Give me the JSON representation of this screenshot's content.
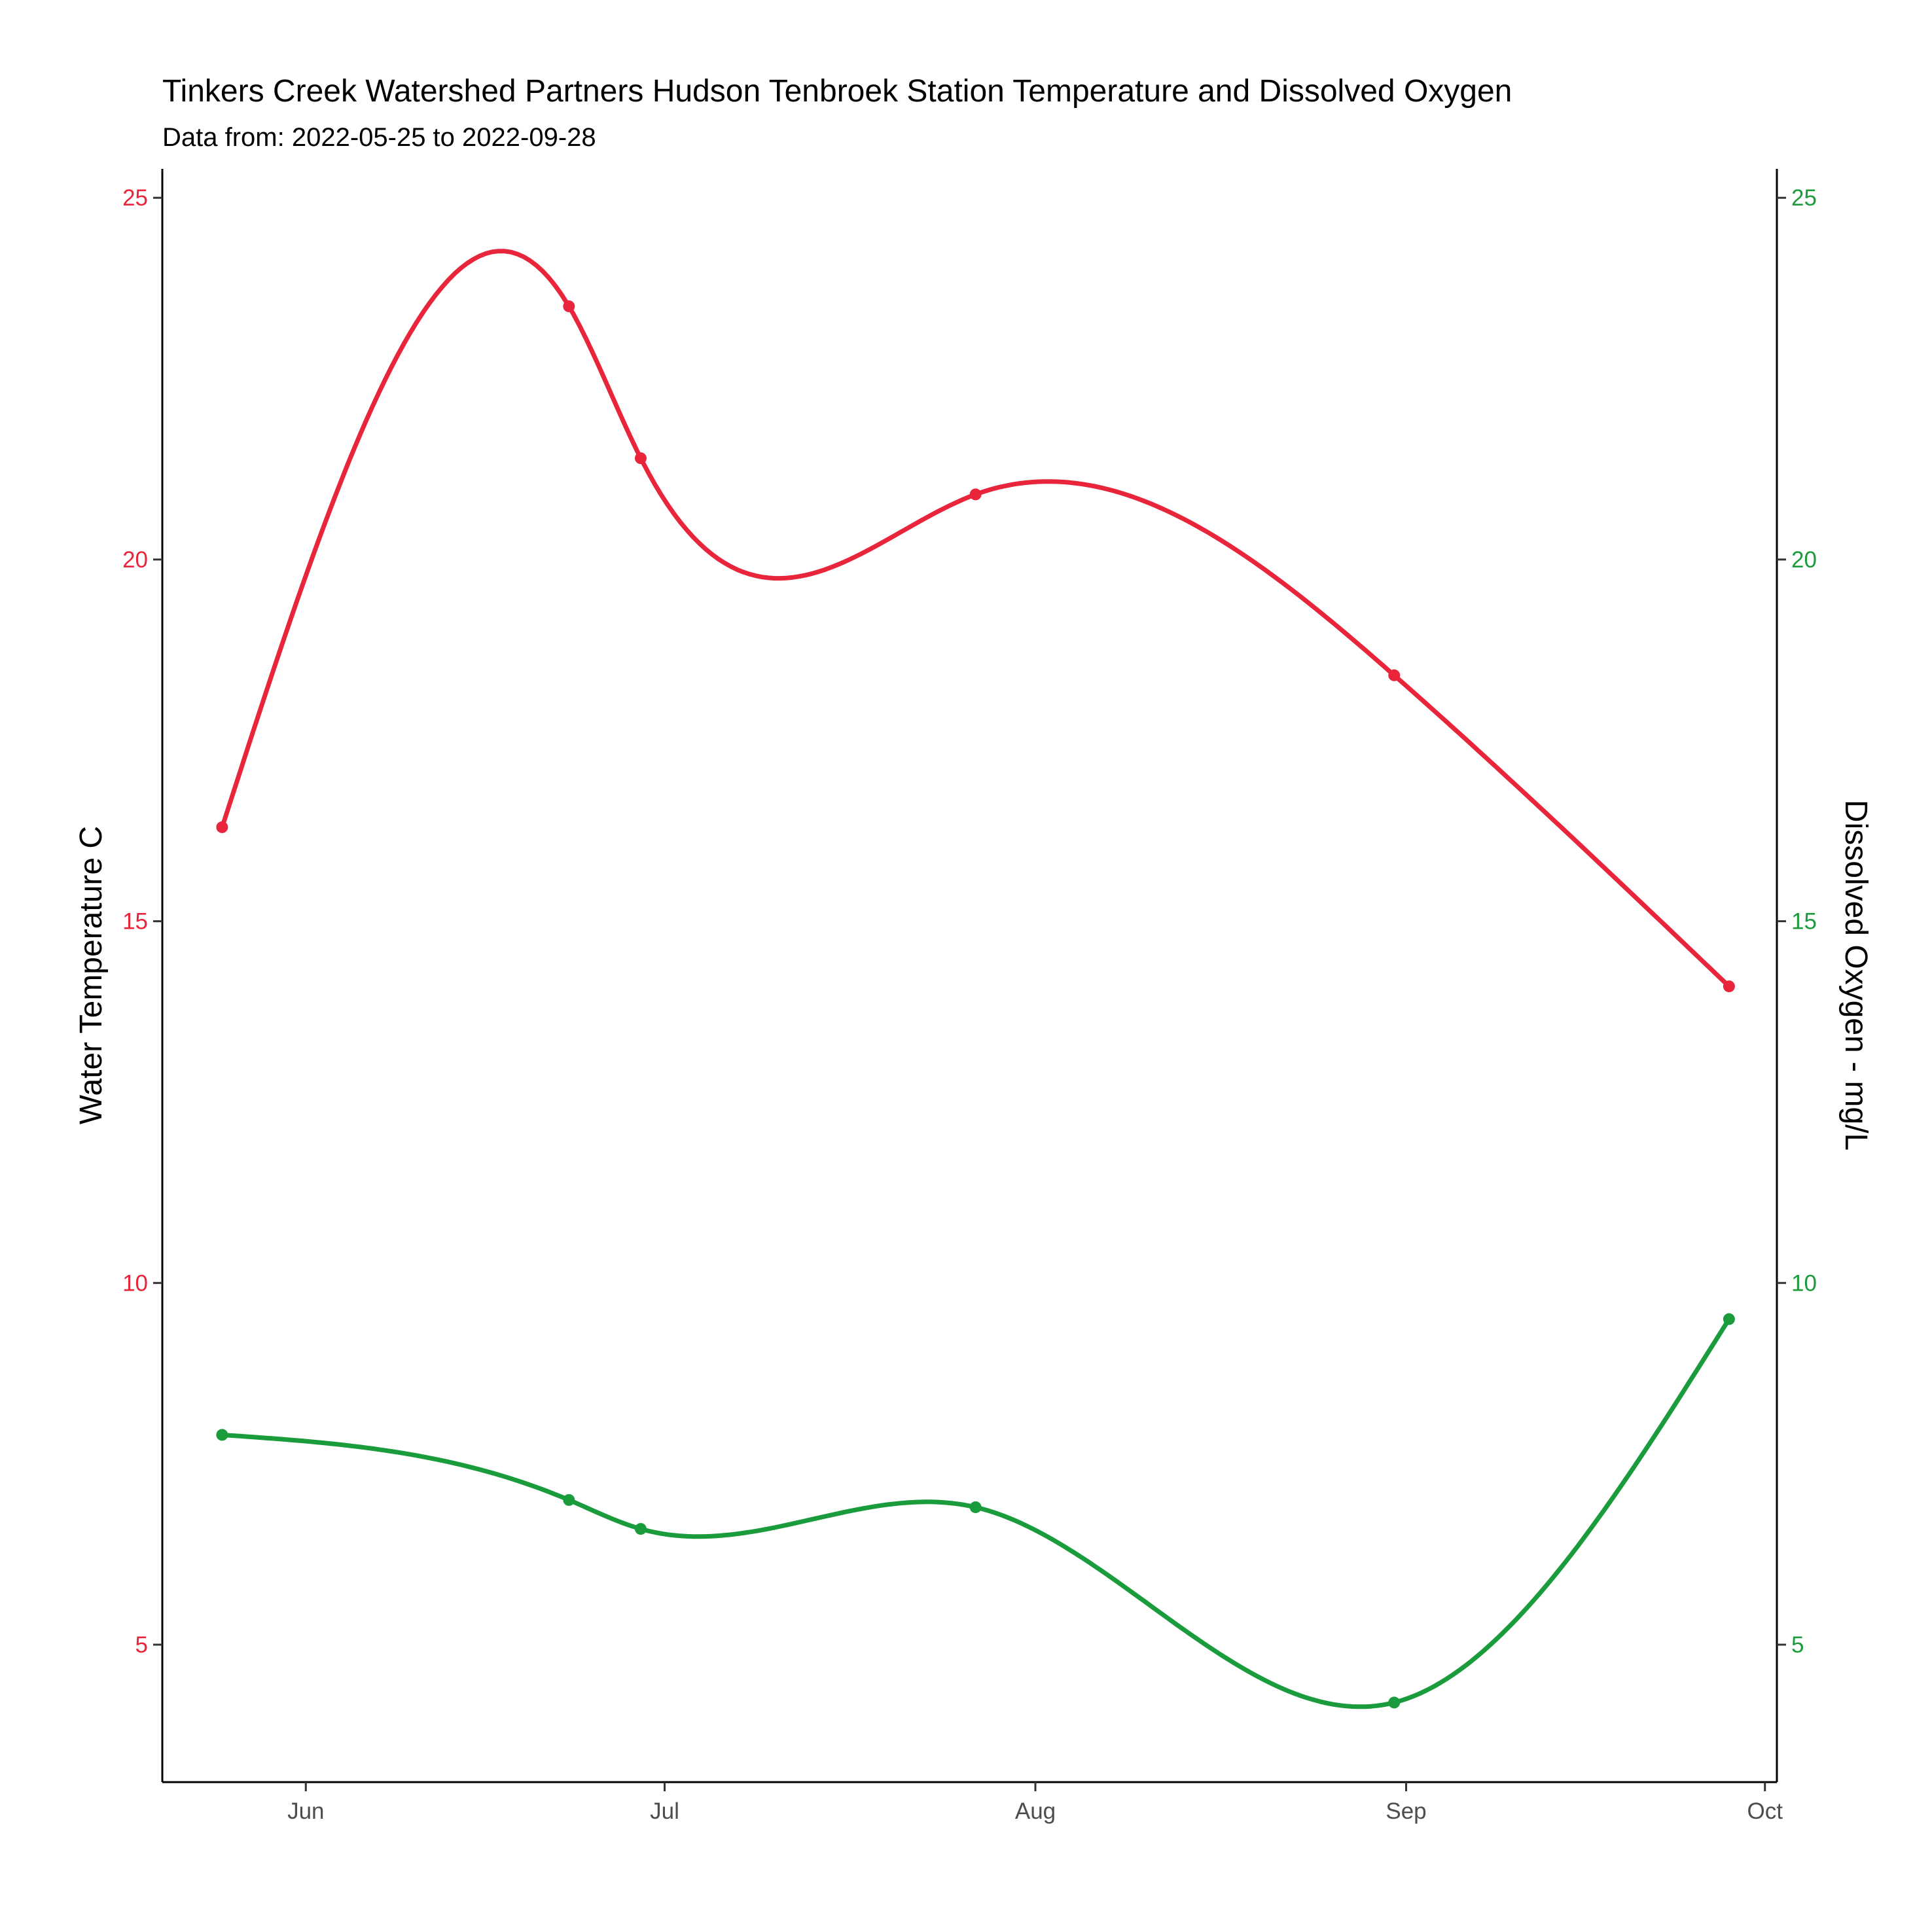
{
  "chart_data": {
    "type": "line",
    "title": "Tinkers Creek Watershed Partners Hudson Tenbroek Station Temperature and Dissolved Oxygen",
    "subtitle": "Data from: 2022-05-25 to 2022-09-28",
    "x_axis": {
      "type": "date",
      "range": [
        "2022-05-20",
        "2022-10-02"
      ],
      "ticks": [
        {
          "date": "2022-06-01",
          "label": "Jun"
        },
        {
          "date": "2022-07-01",
          "label": "Jul"
        },
        {
          "date": "2022-08-01",
          "label": "Aug"
        },
        {
          "date": "2022-09-01",
          "label": "Sep"
        },
        {
          "date": "2022-10-01",
          "label": "Oct"
        }
      ]
    },
    "y_left": {
      "label": "Water Temperature C",
      "range": [
        3.1,
        25.4
      ],
      "ticks": [
        5,
        10,
        15,
        20,
        25
      ],
      "color": "#e8253a"
    },
    "y_right": {
      "label": "Dissolved Oxygen - mg/L",
      "range": [
        3.1,
        25.4
      ],
      "ticks": [
        5,
        10,
        15,
        20,
        25
      ],
      "color": "#1a9c3c"
    },
    "grid": false,
    "legend": "none",
    "series": [
      {
        "axis": "left",
        "color": "#e8253a",
        "smooth": true,
        "points": [
          {
            "x": "2022-05-25",
            "y": 16.3
          },
          {
            "x": "2022-06-23",
            "y": 23.5
          },
          {
            "x": "2022-06-29",
            "y": 21.4
          },
          {
            "x": "2022-07-27",
            "y": 20.9
          },
          {
            "x": "2022-08-31",
            "y": 18.4
          },
          {
            "x": "2022-09-28",
            "y": 14.1
          }
        ]
      },
      {
        "axis": "right",
        "color": "#1a9c3c",
        "smooth": true,
        "points": [
          {
            "x": "2022-05-25",
            "y": 7.9
          },
          {
            "x": "2022-06-23",
            "y": 7.0
          },
          {
            "x": "2022-06-29",
            "y": 6.6
          },
          {
            "x": "2022-07-27",
            "y": 6.9
          },
          {
            "x": "2022-08-31",
            "y": 4.2
          },
          {
            "x": "2022-09-28",
            "y": 9.5
          }
        ]
      }
    ]
  }
}
